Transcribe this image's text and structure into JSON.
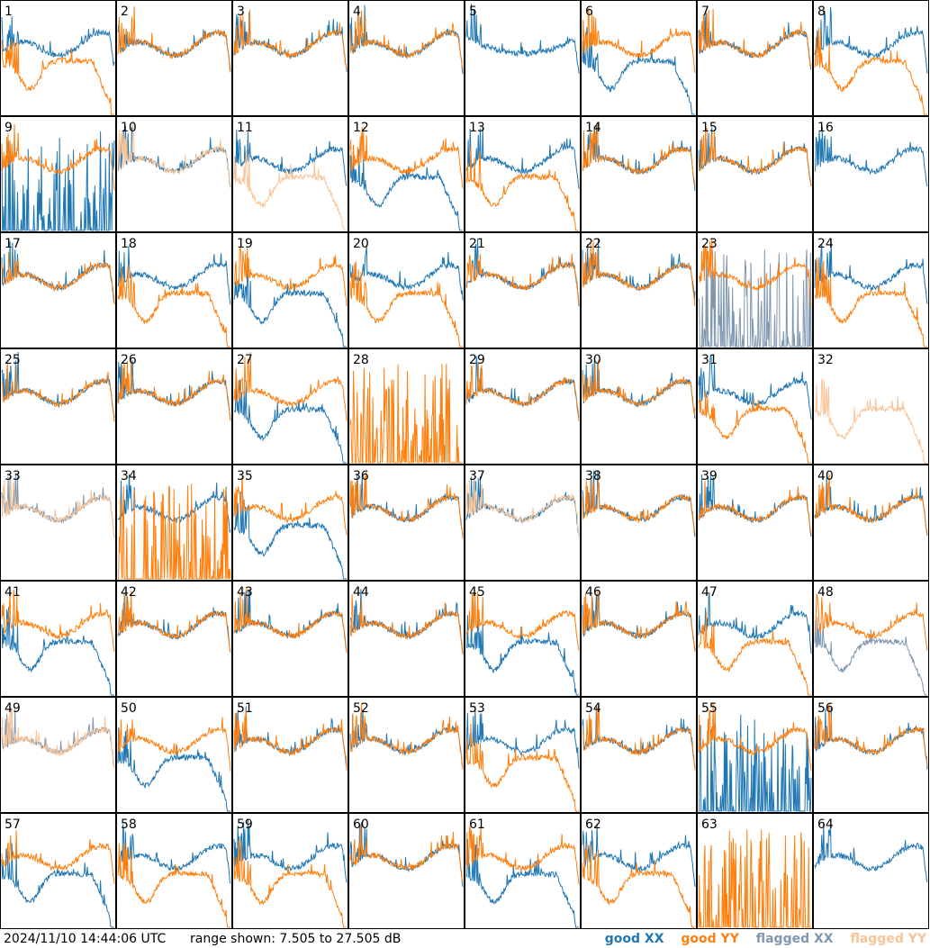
{
  "footer": {
    "timestamp": "2024/11/10 14:44:06 UTC",
    "range": "range shown: 7.505 to 27.505 dB",
    "legend": {
      "good_xx": "good XX",
      "good_yy": "good YY",
      "flagged_xx": "flagged XX",
      "flagged_yy": "flagged YY"
    }
  },
  "colors": {
    "good_xx": "#1f77b4",
    "good_yy": "#ff7f0e",
    "flagged_xx": "#7f97b0",
    "flagged_yy": "#f9c497",
    "border": "#000000"
  },
  "chart_data": {
    "type": "line",
    "y_unit": "dB",
    "ylim": [
      7.505,
      27.505
    ],
    "grid": "8x8 small multiples",
    "panels": [
      {
        "label": "1",
        "xx": "good",
        "yy": "good",
        "shape_xx": "flat",
        "shape_yy": "dip"
      },
      {
        "label": "2",
        "xx": "good",
        "yy": "good",
        "shape_xx": "flat",
        "shape_yy": "flat"
      },
      {
        "label": "3",
        "xx": "good",
        "yy": "good",
        "shape_xx": "flat",
        "shape_yy": "flat"
      },
      {
        "label": "4",
        "xx": "good",
        "yy": "good",
        "shape_xx": "flat",
        "shape_yy": "flat"
      },
      {
        "label": "5",
        "xx": "good",
        "yy": "good",
        "shape_xx": "bowl",
        "shape_yy": "empty"
      },
      {
        "label": "6",
        "xx": "good",
        "yy": "good",
        "shape_xx": "dip",
        "shape_yy": "flat"
      },
      {
        "label": "7",
        "xx": "good",
        "yy": "good",
        "shape_xx": "flat",
        "shape_yy": "flat"
      },
      {
        "label": "8",
        "xx": "good",
        "yy": "good",
        "shape_xx": "flat",
        "shape_yy": "dip"
      },
      {
        "label": "9",
        "xx": "good",
        "yy": "good",
        "shape_xx": "spiky",
        "shape_yy": "flat"
      },
      {
        "label": "10",
        "xx": "good",
        "yy": "flagged",
        "shape_xx": "flat",
        "shape_yy": "flat"
      },
      {
        "label": "11",
        "xx": "good",
        "yy": "flagged",
        "shape_xx": "flat",
        "shape_yy": "dip"
      },
      {
        "label": "12",
        "xx": "good",
        "yy": "good",
        "shape_xx": "dip",
        "shape_yy": "flat"
      },
      {
        "label": "13",
        "xx": "good",
        "yy": "good",
        "shape_xx": "flat",
        "shape_yy": "dip"
      },
      {
        "label": "14",
        "xx": "good",
        "yy": "good",
        "shape_xx": "flat",
        "shape_yy": "flat"
      },
      {
        "label": "15",
        "xx": "good",
        "yy": "good",
        "shape_xx": "flat",
        "shape_yy": "flat"
      },
      {
        "label": "16",
        "xx": "good",
        "yy": "good",
        "shape_xx": "flat",
        "shape_yy": "empty"
      },
      {
        "label": "17",
        "xx": "good",
        "yy": "good",
        "shape_xx": "flat",
        "shape_yy": "flat"
      },
      {
        "label": "18",
        "xx": "good",
        "yy": "good",
        "shape_xx": "flat",
        "shape_yy": "dip"
      },
      {
        "label": "19",
        "xx": "good",
        "yy": "good",
        "shape_xx": "dip",
        "shape_yy": "flat"
      },
      {
        "label": "20",
        "xx": "good",
        "yy": "good",
        "shape_xx": "flat",
        "shape_yy": "dip"
      },
      {
        "label": "21",
        "xx": "good",
        "yy": "good",
        "shape_xx": "flat",
        "shape_yy": "flat"
      },
      {
        "label": "22",
        "xx": "good",
        "yy": "good",
        "shape_xx": "flat",
        "shape_yy": "flat"
      },
      {
        "label": "23",
        "xx": "flagged",
        "yy": "good",
        "shape_xx": "spiky",
        "shape_yy": "flat"
      },
      {
        "label": "24",
        "xx": "good",
        "yy": "good",
        "shape_xx": "flat",
        "shape_yy": "dip"
      },
      {
        "label": "25",
        "xx": "good",
        "yy": "good",
        "shape_xx": "flat",
        "shape_yy": "flat"
      },
      {
        "label": "26",
        "xx": "good",
        "yy": "good",
        "shape_xx": "flat",
        "shape_yy": "flat"
      },
      {
        "label": "27",
        "xx": "good",
        "yy": "good",
        "shape_xx": "dip",
        "shape_yy": "flat"
      },
      {
        "label": "28",
        "xx": "good",
        "yy": "good",
        "shape_xx": "empty",
        "shape_yy": "spiky"
      },
      {
        "label": "29",
        "xx": "good",
        "yy": "good",
        "shape_xx": "flat",
        "shape_yy": "flat"
      },
      {
        "label": "30",
        "xx": "good",
        "yy": "good",
        "shape_xx": "flat",
        "shape_yy": "flat"
      },
      {
        "label": "31",
        "xx": "good",
        "yy": "good",
        "shape_xx": "flat",
        "shape_yy": "dip"
      },
      {
        "label": "32",
        "xx": "good",
        "yy": "flagged",
        "shape_xx": "empty",
        "shape_yy": "dip"
      },
      {
        "label": "33",
        "xx": "flagged",
        "yy": "flagged",
        "shape_xx": "flat",
        "shape_yy": "flat"
      },
      {
        "label": "34",
        "xx": "good",
        "yy": "good",
        "shape_xx": "flat",
        "shape_yy": "spiky"
      },
      {
        "label": "35",
        "xx": "good",
        "yy": "good",
        "shape_xx": "dip",
        "shape_yy": "flat"
      },
      {
        "label": "36",
        "xx": "good",
        "yy": "good",
        "shape_xx": "flat",
        "shape_yy": "flat"
      },
      {
        "label": "37",
        "xx": "good",
        "yy": "flagged",
        "shape_xx": "flat",
        "shape_yy": "flat"
      },
      {
        "label": "38",
        "xx": "good",
        "yy": "good",
        "shape_xx": "flat",
        "shape_yy": "flat"
      },
      {
        "label": "39",
        "xx": "good",
        "yy": "good",
        "shape_xx": "flat",
        "shape_yy": "flat"
      },
      {
        "label": "40",
        "xx": "good",
        "yy": "good",
        "shape_xx": "flat",
        "shape_yy": "flat"
      },
      {
        "label": "41",
        "xx": "good",
        "yy": "good",
        "shape_xx": "dip",
        "shape_yy": "flat"
      },
      {
        "label": "42",
        "xx": "good",
        "yy": "good",
        "shape_xx": "flat",
        "shape_yy": "flat"
      },
      {
        "label": "43",
        "xx": "good",
        "yy": "good",
        "shape_xx": "flat",
        "shape_yy": "flat"
      },
      {
        "label": "44",
        "xx": "good",
        "yy": "good",
        "shape_xx": "flat",
        "shape_yy": "flat"
      },
      {
        "label": "45",
        "xx": "good",
        "yy": "good",
        "shape_xx": "dip",
        "shape_yy": "flat"
      },
      {
        "label": "46",
        "xx": "good",
        "yy": "good",
        "shape_xx": "flat",
        "shape_yy": "flat"
      },
      {
        "label": "47",
        "xx": "good",
        "yy": "good",
        "shape_xx": "flat",
        "shape_yy": "dip"
      },
      {
        "label": "48",
        "xx": "flagged",
        "yy": "good",
        "shape_xx": "dip",
        "shape_yy": "flat"
      },
      {
        "label": "49",
        "xx": "flagged",
        "yy": "flagged",
        "shape_xx": "flat",
        "shape_yy": "flat"
      },
      {
        "label": "50",
        "xx": "good",
        "yy": "good",
        "shape_xx": "dip",
        "shape_yy": "flat"
      },
      {
        "label": "51",
        "xx": "good",
        "yy": "good",
        "shape_xx": "flat",
        "shape_yy": "flat"
      },
      {
        "label": "52",
        "xx": "good",
        "yy": "good",
        "shape_xx": "flat",
        "shape_yy": "flat"
      },
      {
        "label": "53",
        "xx": "good",
        "yy": "good",
        "shape_xx": "flat",
        "shape_yy": "dip"
      },
      {
        "label": "54",
        "xx": "good",
        "yy": "good",
        "shape_xx": "flat",
        "shape_yy": "flat"
      },
      {
        "label": "55",
        "xx": "good",
        "yy": "good",
        "shape_xx": "spiky",
        "shape_yy": "flat"
      },
      {
        "label": "56",
        "xx": "good",
        "yy": "good",
        "shape_xx": "flat",
        "shape_yy": "flat"
      },
      {
        "label": "57",
        "xx": "good",
        "yy": "good",
        "shape_xx": "dip",
        "shape_yy": "flat"
      },
      {
        "label": "58",
        "xx": "good",
        "yy": "good",
        "shape_xx": "flat",
        "shape_yy": "dip"
      },
      {
        "label": "59",
        "xx": "good",
        "yy": "good",
        "shape_xx": "flat",
        "shape_yy": "dip"
      },
      {
        "label": "60",
        "xx": "good",
        "yy": "good",
        "shape_xx": "flat",
        "shape_yy": "flat"
      },
      {
        "label": "61",
        "xx": "good",
        "yy": "good",
        "shape_xx": "dip",
        "shape_yy": "flat"
      },
      {
        "label": "62",
        "xx": "good",
        "yy": "good",
        "shape_xx": "flat",
        "shape_yy": "dip"
      },
      {
        "label": "63",
        "xx": "good",
        "yy": "good",
        "shape_xx": "empty",
        "shape_yy": "spiky"
      },
      {
        "label": "64",
        "xx": "good",
        "yy": "good",
        "shape_xx": "flat",
        "shape_yy": "empty"
      }
    ]
  }
}
